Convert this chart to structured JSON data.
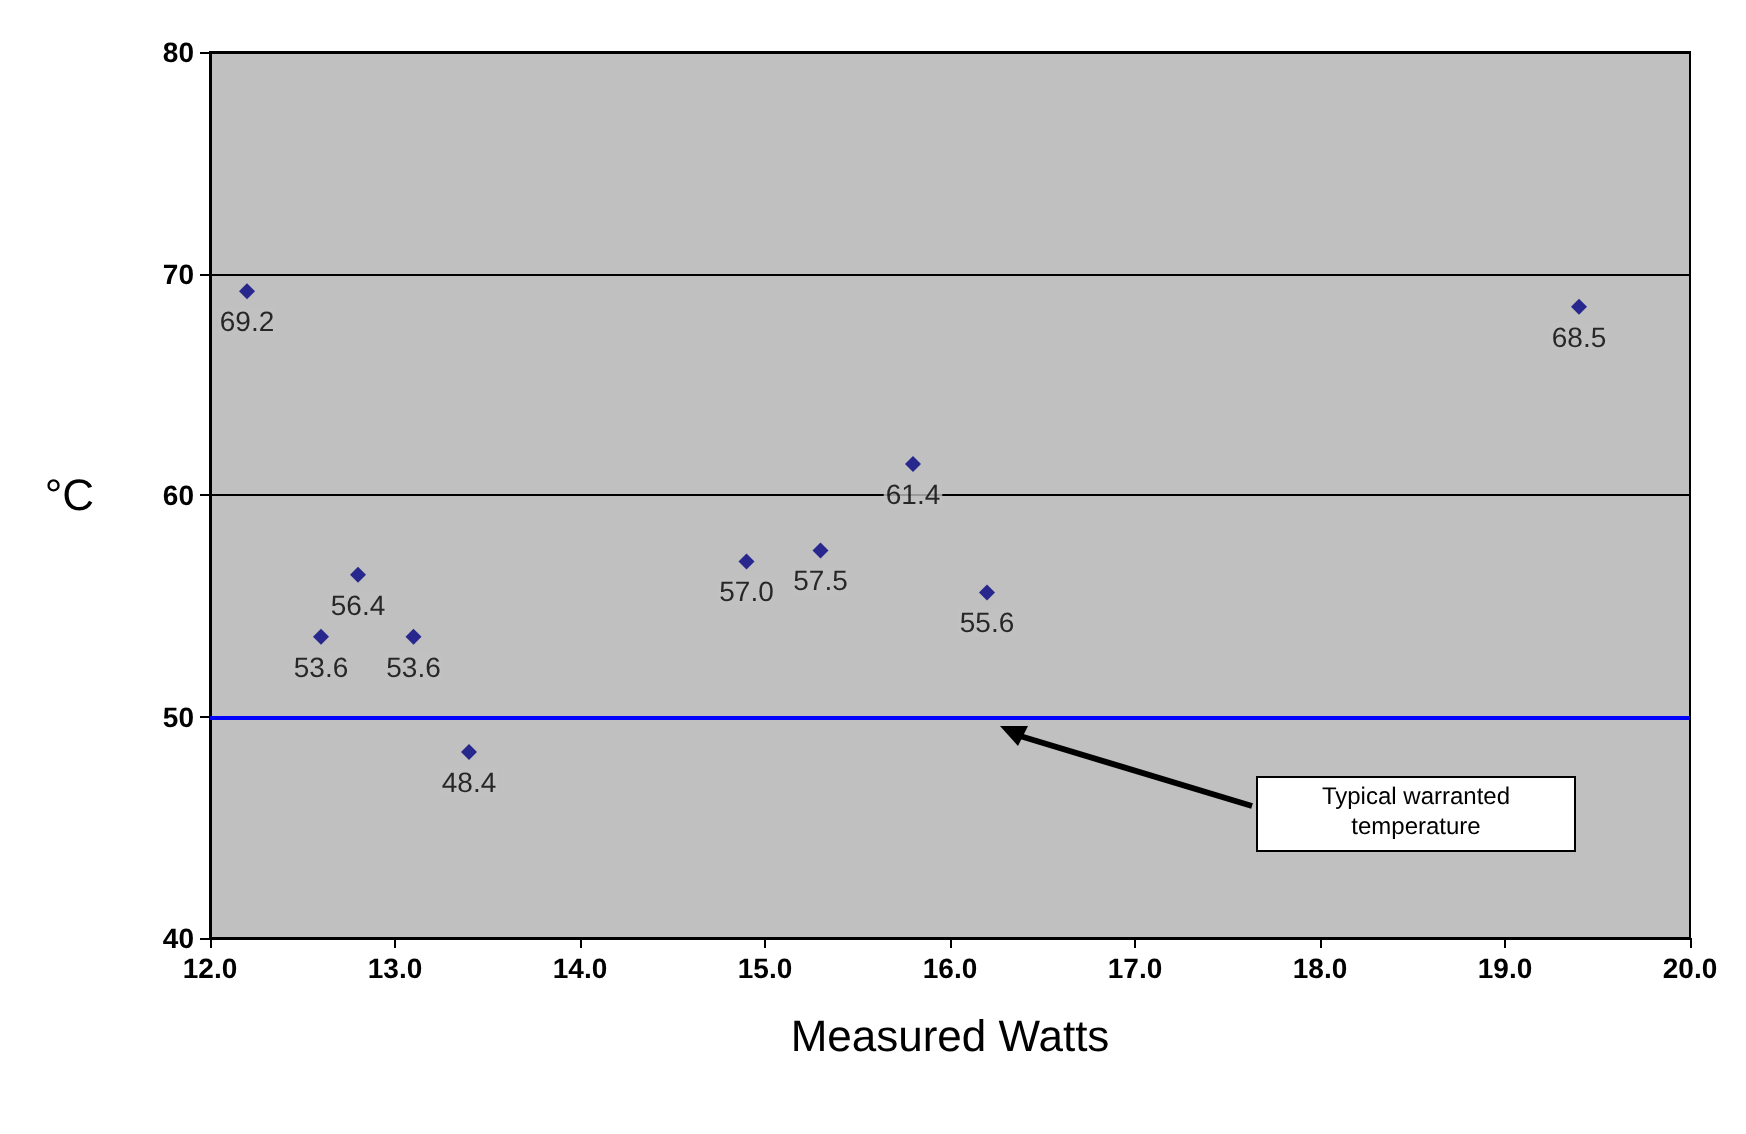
{
  "chart_data": {
    "type": "scatter",
    "xlabel": "Measured Watts",
    "ylabel": "°C",
    "x": [
      12.2,
      12.6,
      12.8,
      13.1,
      13.4,
      14.9,
      15.3,
      15.8,
      16.2,
      19.4
    ],
    "values": [
      69.2,
      53.6,
      56.4,
      53.6,
      48.4,
      57.0,
      57.5,
      61.4,
      55.6,
      68.5
    ],
    "value_labels": [
      "69.2",
      "53.6",
      "56.4",
      "53.6",
      "48.4",
      "57.0",
      "57.5",
      "61.4",
      "55.6",
      "68.5"
    ],
    "color": "#000080",
    "marker": "diamond",
    "xlim": [
      12,
      20
    ],
    "xticks": [
      {
        "value": 12,
        "label": "12.0"
      },
      {
        "value": 13,
        "label": "13.0"
      },
      {
        "value": 14,
        "label": "14.0"
      },
      {
        "value": 15,
        "label": "15.0"
      },
      {
        "value": 16,
        "label": "16.0"
      },
      {
        "value": 17,
        "label": "17.0"
      },
      {
        "value": 18,
        "label": "18.0"
      },
      {
        "value": 19,
        "label": "19.0"
      },
      {
        "value": 20,
        "label": "20.0"
      }
    ],
    "ylim": [
      40,
      80
    ],
    "yticks": [
      40,
      50,
      60,
      70,
      80
    ],
    "grid": "y",
    "ref_lines": [
      {
        "axis": "y",
        "value": 50,
        "color": "#0000ff"
      }
    ],
    "annotations": [
      "Typical warranted temperature"
    ]
  }
}
